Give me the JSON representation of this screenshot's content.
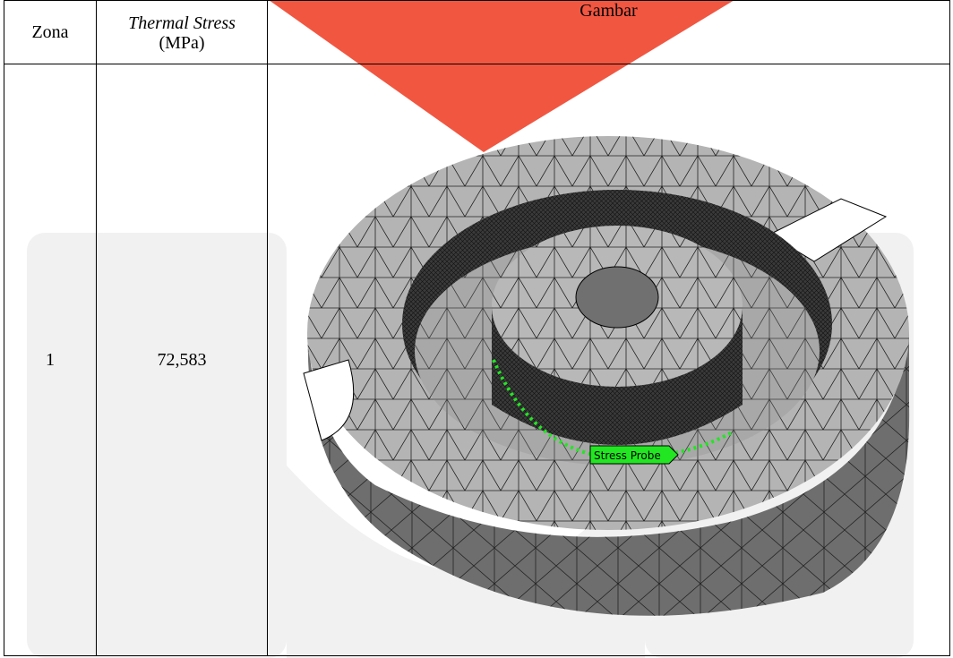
{
  "table": {
    "headers": {
      "zona": "Zona",
      "stress_title": "Thermal Stress",
      "stress_unit": "(MPa)",
      "gambar": "Gambar"
    },
    "rows": [
      {
        "zona": "1",
        "stress": "72,583"
      }
    ]
  },
  "figure": {
    "probe_label": "Stress Probe",
    "colors": {
      "mesh_face": "#b4b4b4",
      "mesh_side": "#6e6e6e",
      "dense_wall": "#3a3a3a",
      "probe": "#22e622",
      "watermark_red": "#f0442c",
      "watermark_gray": "#f1f1f1"
    }
  }
}
